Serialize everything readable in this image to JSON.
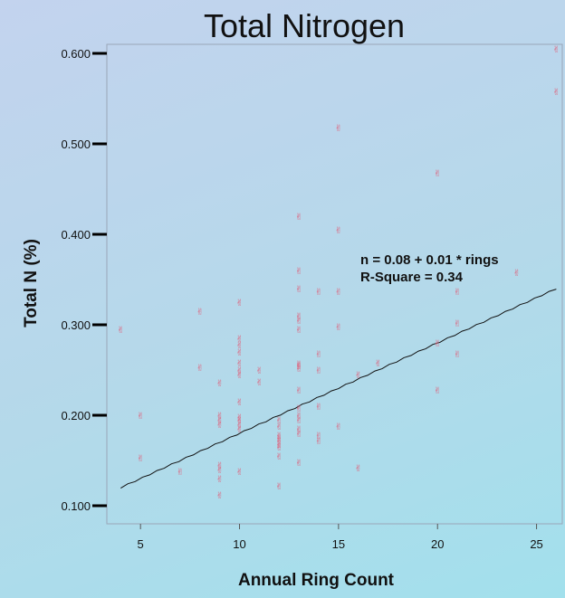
{
  "chart_data": {
    "type": "scatter",
    "title": "Total Nitrogen",
    "xlabel": "Annual Ring Count",
    "ylabel": "Total N (%)",
    "xlim": [
      3.3,
      26.3
    ],
    "ylim": [
      0.08,
      0.61
    ],
    "x_ticks": [
      5,
      10,
      15,
      20,
      25
    ],
    "y_ticks": [
      0.1,
      0.2,
      0.3,
      0.4,
      0.5,
      0.6
    ],
    "y_tick_labels": [
      "0.100",
      "0.200",
      "0.300",
      "0.400",
      "0.500",
      "0.600"
    ],
    "grid": false,
    "marker_color": "#e0607a",
    "marker_glyph": "✌",
    "points": [
      [
        4,
        0.295
      ],
      [
        5,
        0.2
      ],
      [
        5,
        0.153
      ],
      [
        7,
        0.138
      ],
      [
        8,
        0.315
      ],
      [
        8,
        0.253
      ],
      [
        9,
        0.236
      ],
      [
        9,
        0.2
      ],
      [
        9,
        0.195
      ],
      [
        9,
        0.19
      ],
      [
        9,
        0.145
      ],
      [
        9,
        0.14
      ],
      [
        9,
        0.13
      ],
      [
        9,
        0.112
      ],
      [
        10,
        0.325
      ],
      [
        10,
        0.285
      ],
      [
        10,
        0.278
      ],
      [
        10,
        0.27
      ],
      [
        10,
        0.258
      ],
      [
        10,
        0.25
      ],
      [
        10,
        0.245
      ],
      [
        10,
        0.215
      ],
      [
        10,
        0.198
      ],
      [
        10,
        0.195
      ],
      [
        10,
        0.19
      ],
      [
        10,
        0.185
      ],
      [
        10,
        0.138
      ],
      [
        11,
        0.25
      ],
      [
        11,
        0.237
      ],
      [
        12,
        0.195
      ],
      [
        12,
        0.188
      ],
      [
        12,
        0.178
      ],
      [
        12,
        0.175
      ],
      [
        12,
        0.172
      ],
      [
        12,
        0.168
      ],
      [
        12,
        0.165
      ],
      [
        12,
        0.155
      ],
      [
        12,
        0.122
      ],
      [
        13,
        0.42
      ],
      [
        13,
        0.36
      ],
      [
        13,
        0.34
      ],
      [
        13,
        0.31
      ],
      [
        13,
        0.305
      ],
      [
        13,
        0.295
      ],
      [
        13,
        0.257
      ],
      [
        13,
        0.255
      ],
      [
        13,
        0.252
      ],
      [
        13,
        0.228
      ],
      [
        13,
        0.208
      ],
      [
        13,
        0.2
      ],
      [
        13,
        0.195
      ],
      [
        13,
        0.185
      ],
      [
        13,
        0.18
      ],
      [
        13,
        0.148
      ],
      [
        14,
        0.337
      ],
      [
        14,
        0.268
      ],
      [
        14,
        0.25
      ],
      [
        14,
        0.21
      ],
      [
        14,
        0.178
      ],
      [
        14,
        0.172
      ],
      [
        15,
        0.518
      ],
      [
        15,
        0.405
      ],
      [
        15,
        0.337
      ],
      [
        15,
        0.298
      ],
      [
        15,
        0.188
      ],
      [
        16,
        0.245
      ],
      [
        16,
        0.142
      ],
      [
        17,
        0.258
      ],
      [
        20,
        0.468
      ],
      [
        20,
        0.28
      ],
      [
        20,
        0.228
      ],
      [
        21,
        0.337
      ],
      [
        21,
        0.302
      ],
      [
        21,
        0.268
      ],
      [
        24,
        0.358
      ],
      [
        26,
        0.605
      ],
      [
        26,
        0.558
      ]
    ],
    "fit_line": {
      "intercept": 0.08,
      "slope": 0.01,
      "x_range": [
        4,
        26
      ],
      "color": "#111111"
    },
    "annotations": [
      "n = 0.08 + 0.01 * rings",
      "R-Square = 0.34"
    ]
  }
}
